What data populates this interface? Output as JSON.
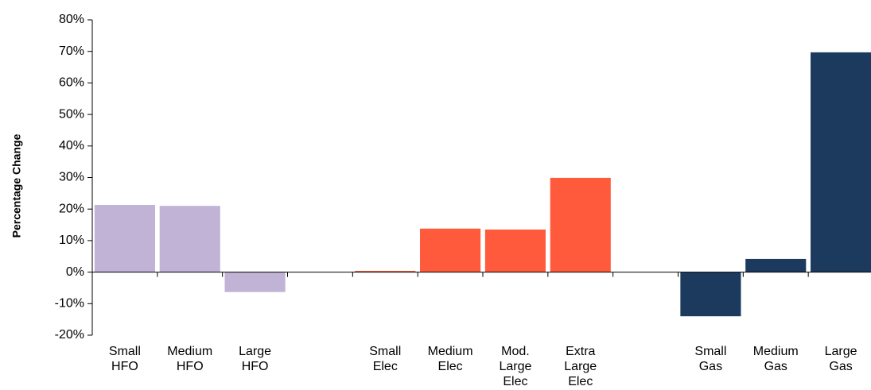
{
  "chart_data": {
    "type": "bar",
    "y_label": "Percentage Change",
    "categories": [
      "Small HFO",
      "Medium HFO",
      "Large HFO",
      null,
      "Small Elec",
      "Medium Elec",
      "Mod. Large Elec",
      "Extra Large Elec",
      null,
      "Small Gas",
      "Medium Gas",
      "Large Gas"
    ],
    "values": [
      21.3,
      21,
      -6.3,
      null,
      0.4,
      13.8,
      13.5,
      29.9,
      null,
      -14,
      4.2,
      69.7
    ],
    "colors": [
      "#c0b3d5",
      "#c0b3d5",
      "#c0b3d5",
      null,
      "#ff5a3c",
      "#ff5a3c",
      "#ff5a3c",
      "#ff5a3c",
      null,
      "#1c3a5e",
      "#1c3a5e",
      "#1c3a5e"
    ],
    "ylim": [
      -20,
      80
    ],
    "yticks": [
      {
        "value": -20,
        "label": "-20%"
      },
      {
        "value": -10,
        "label": "-10%"
      },
      {
        "value": 0,
        "label": "0%"
      },
      {
        "value": 10,
        "label": "10%"
      },
      {
        "value": 20,
        "label": "20%"
      },
      {
        "value": 30,
        "label": "30%"
      },
      {
        "value": 40,
        "label": "40%"
      },
      {
        "value": 50,
        "label": "50%"
      },
      {
        "value": 60,
        "label": "60%"
      },
      {
        "value": 70,
        "label": "70%"
      },
      {
        "value": 80,
        "label": "80%"
      }
    ],
    "grid": false
  }
}
